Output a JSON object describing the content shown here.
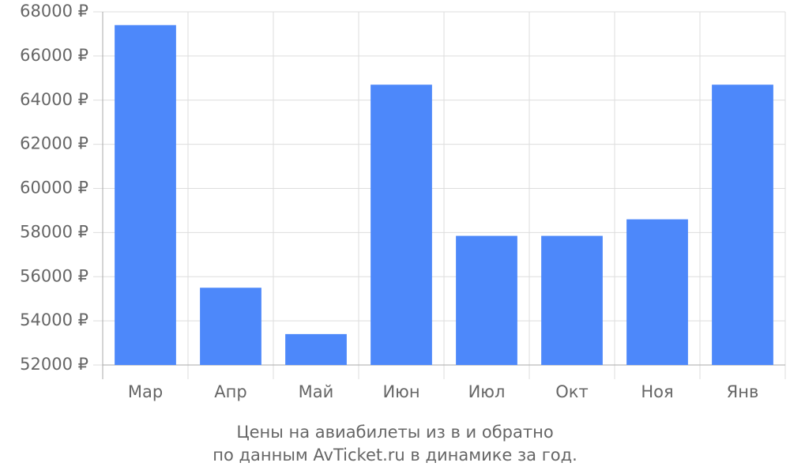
{
  "chart_data": {
    "type": "bar",
    "caption": [
      "Цены на авиабилеты из  в  и обратно",
      "по данным AvTicket.ru в динамике за год."
    ],
    "categories": [
      "Мар",
      "Апр",
      "Май",
      "Июн",
      "Июл",
      "Окт",
      "Ноя",
      "Янв"
    ],
    "values": [
      67400,
      55500,
      53400,
      64700,
      57850,
      57850,
      58600,
      64700
    ],
    "color": "#4d88fa",
    "ylim": [
      52000,
      68000
    ],
    "yticks": [
      {
        "value": 52000,
        "label": "52000 ₽"
      },
      {
        "value": 54000,
        "label": "54000 ₽"
      },
      {
        "value": 56000,
        "label": "56000 ₽"
      },
      {
        "value": 58000,
        "label": "58000 ₽"
      },
      {
        "value": 60000,
        "label": "60000 ₽"
      },
      {
        "value": 62000,
        "label": "62000 ₽"
      },
      {
        "value": 64000,
        "label": "64000 ₽"
      },
      {
        "value": 66000,
        "label": "66000 ₽"
      },
      {
        "value": 68000,
        "label": "68000 ₽"
      }
    ],
    "grid": true
  }
}
